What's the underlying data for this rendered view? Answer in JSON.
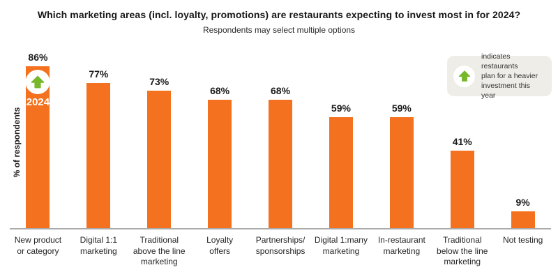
{
  "title": "Which marketing areas (incl. loyalty, promotions) are restaurants expecting to invest most in for 2024?",
  "subtitle": "Respondents may select multiple options",
  "legend": {
    "icon": "up-arrow-icon",
    "text": "indicates restaurants\nplan for a heavier\ninvestment this year"
  },
  "annotation": {
    "bar_index": 0,
    "icon": "up-arrow-icon",
    "label": "2024"
  },
  "colors": {
    "bar": "#f4711f",
    "arrow_green": "#76b82a",
    "legend_bg": "#eeede7",
    "axis_line": "#ababab",
    "text": "#1b1b1b"
  },
  "chart_data": {
    "type": "bar",
    "title": "Which marketing areas (incl. loyalty, promotions) are restaurants expecting to invest most in for 2024?",
    "subtitle": "Respondents may select multiple options",
    "categories": [
      "New product\nor category",
      "Digital 1:1\nmarketing",
      "Traditional\nabove the line\nmarketing",
      "Loyalty\noffers",
      "Partnerships/\nsponsorships",
      "Digital 1:many\nmarketing",
      "In-restaurant\nmarketing",
      "Traditional\nbelow the line\nmarketing",
      "Not testing"
    ],
    "values": [
      86,
      77,
      73,
      68,
      68,
      59,
      59,
      41,
      9
    ],
    "value_labels": [
      "86%",
      "77%",
      "73%",
      "68%",
      "68%",
      "59%",
      "59%",
      "41%",
      "9%"
    ],
    "xlabel": "",
    "ylabel": "% of respondents",
    "ylim": [
      0,
      100
    ],
    "grid": false,
    "legend_position": "top-right",
    "bar_color": "#f4711f",
    "annotations": [
      "First bar (New product or category) carries a green up-arrow badge labeled 2024, meaning restaurants plan a heavier investment this year"
    ]
  }
}
